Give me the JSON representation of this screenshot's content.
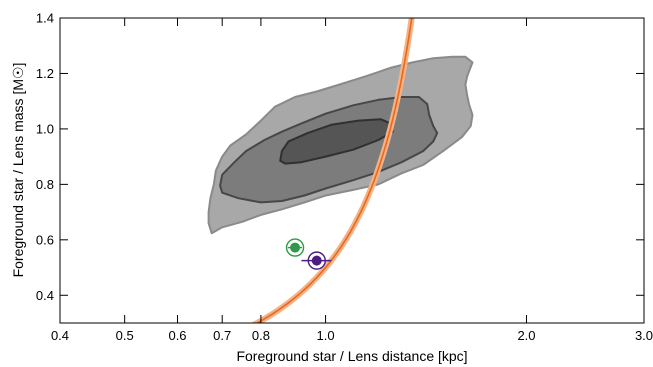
{
  "chart_data": {
    "type": "scatter",
    "title": "",
    "xlabel": "Foreground star / Lens distance [kpc]",
    "ylabel": "Foreground star / Lens mass [M☉]",
    "xscale": "log",
    "xlim": [
      0.4,
      3.0
    ],
    "ylim": [
      0.3,
      1.4
    ],
    "xticks": [
      {
        "value": 0.4,
        "label": "0.4"
      },
      {
        "value": 0.5,
        "label": "0.5"
      },
      {
        "value": 0.6,
        "label": "0.6"
      },
      {
        "value": 0.7,
        "label": "0.7"
      },
      {
        "value": 0.8,
        "label": "0.8"
      },
      {
        "value": 1.0,
        "label": "1.0"
      },
      {
        "value": 2.0,
        "label": "2.0"
      },
      {
        "value": 3.0,
        "label": "3.0"
      }
    ],
    "yticks": [
      {
        "value": 0.4,
        "label": "0.4"
      },
      {
        "value": 0.6,
        "label": "0.6"
      },
      {
        "value": 0.8,
        "label": "0.8"
      },
      {
        "value": 1.0,
        "label": "1.0"
      },
      {
        "value": 1.2,
        "label": "1.2"
      },
      {
        "value": 1.4,
        "label": "1.4"
      }
    ],
    "grid": false,
    "legend": "none",
    "contours": [
      {
        "level": "outer",
        "fill": "#a8a8a8",
        "stroke": "#8a8a8a",
        "points": [
          [
            0.675,
            0.624
          ],
          [
            0.7,
            0.645
          ],
          [
            0.75,
            0.665
          ],
          [
            0.8,
            0.69
          ],
          [
            0.86,
            0.71
          ],
          [
            0.93,
            0.735
          ],
          [
            1.0,
            0.76
          ],
          [
            1.1,
            0.78
          ],
          [
            1.2,
            0.8
          ],
          [
            1.3,
            0.84
          ],
          [
            1.4,
            0.87
          ],
          [
            1.5,
            0.92
          ],
          [
            1.6,
            0.97
          ],
          [
            1.65,
            1.01
          ],
          [
            1.66,
            1.05
          ],
          [
            1.64,
            1.09
          ],
          [
            1.63,
            1.12
          ],
          [
            1.62,
            1.16
          ],
          [
            1.63,
            1.19
          ],
          [
            1.66,
            1.24
          ],
          [
            1.62,
            1.26
          ],
          [
            1.55,
            1.26
          ],
          [
            1.45,
            1.255
          ],
          [
            1.35,
            1.24
          ],
          [
            1.25,
            1.22
          ],
          [
            1.15,
            1.19
          ],
          [
            1.05,
            1.16
          ],
          [
            0.97,
            1.135
          ],
          [
            0.9,
            1.115
          ],
          [
            0.84,
            1.08
          ],
          [
            0.8,
            1.03
          ],
          [
            0.76,
            0.98
          ],
          [
            0.72,
            0.94
          ],
          [
            0.7,
            0.9
          ],
          [
            0.685,
            0.85
          ],
          [
            0.68,
            0.8
          ],
          [
            0.672,
            0.75
          ],
          [
            0.668,
            0.7
          ],
          [
            0.668,
            0.66
          ]
        ]
      },
      {
        "level": "middle",
        "fill": "#7c7c7c",
        "stroke": "#474747",
        "points": [
          [
            0.695,
            0.795
          ],
          [
            0.7,
            0.77
          ],
          [
            0.74,
            0.75
          ],
          [
            0.8,
            0.735
          ],
          [
            0.86,
            0.74
          ],
          [
            0.93,
            0.76
          ],
          [
            1.0,
            0.785
          ],
          [
            1.1,
            0.815
          ],
          [
            1.2,
            0.845
          ],
          [
            1.3,
            0.88
          ],
          [
            1.4,
            0.92
          ],
          [
            1.45,
            0.955
          ],
          [
            1.47,
            0.985
          ],
          [
            1.45,
            1.01
          ],
          [
            1.43,
            1.05
          ],
          [
            1.42,
            1.09
          ],
          [
            1.38,
            1.115
          ],
          [
            1.3,
            1.115
          ],
          [
            1.2,
            1.105
          ],
          [
            1.1,
            1.085
          ],
          [
            1.0,
            1.055
          ],
          [
            0.92,
            1.02
          ],
          [
            0.86,
            0.99
          ],
          [
            0.81,
            0.96
          ],
          [
            0.76,
            0.92
          ],
          [
            0.73,
            0.88
          ],
          [
            0.7,
            0.835
          ]
        ]
      },
      {
        "level": "inner",
        "fill": "#555555",
        "stroke": "#303030",
        "points": [
          [
            0.855,
            0.885
          ],
          [
            0.87,
            0.875
          ],
          [
            0.92,
            0.88
          ],
          [
            1.0,
            0.9
          ],
          [
            1.1,
            0.925
          ],
          [
            1.2,
            0.96
          ],
          [
            1.26,
            0.99
          ],
          [
            1.25,
            1.02
          ],
          [
            1.21,
            1.035
          ],
          [
            1.12,
            1.03
          ],
          [
            1.02,
            1.015
          ],
          [
            0.94,
            0.985
          ],
          [
            0.88,
            0.955
          ],
          [
            0.86,
            0.92
          ]
        ]
      }
    ],
    "mass_distance_curve": {
      "color": "#e8691c",
      "band_color": "#f6b285",
      "a": 0.2,
      "b": 0.6,
      "note_form": "M = a * D / (1 - D * b)"
    },
    "points": [
      {
        "x": 0.9,
        "y": 0.572,
        "xerr": 0.022,
        "yerr": 0.012,
        "color": "#2e9a49",
        "marker": "circle"
      },
      {
        "x": 0.97,
        "y": 0.525,
        "xerr": 0.05,
        "yerr": 0.018,
        "color": "#4b1d85",
        "marker": "circle"
      }
    ]
  }
}
